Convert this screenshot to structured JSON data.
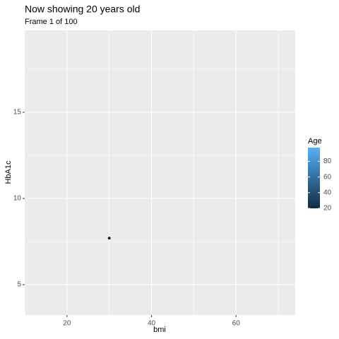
{
  "chart_data": {
    "type": "scatter",
    "title": "Now showing 20 years old",
    "subtitle": "Frame 1 of 100",
    "xlabel": "bmi",
    "ylabel": "HbA1c",
    "series": [
      {
        "x": [
          30
        ],
        "values": [
          7.7
        ],
        "color_values": [
          20
        ]
      }
    ],
    "xlim": [
      10,
      74
    ],
    "xticks": [
      20,
      40,
      60
    ],
    "xminor_ticks": [
      10,
      30,
      50,
      70
    ],
    "ylim": [
      3.24,
      19.75
    ],
    "yticks": [
      5,
      10,
      15
    ],
    "yminor_ticks": [
      7.5,
      12.5,
      17.5
    ],
    "grid": true,
    "color_scale": {
      "title": "Age",
      "lim": [
        20,
        97.5
      ],
      "ticks": [
        20,
        40,
        60,
        80
      ],
      "low": "#132B43",
      "high": "#56B1F7"
    },
    "legend": "right"
  }
}
